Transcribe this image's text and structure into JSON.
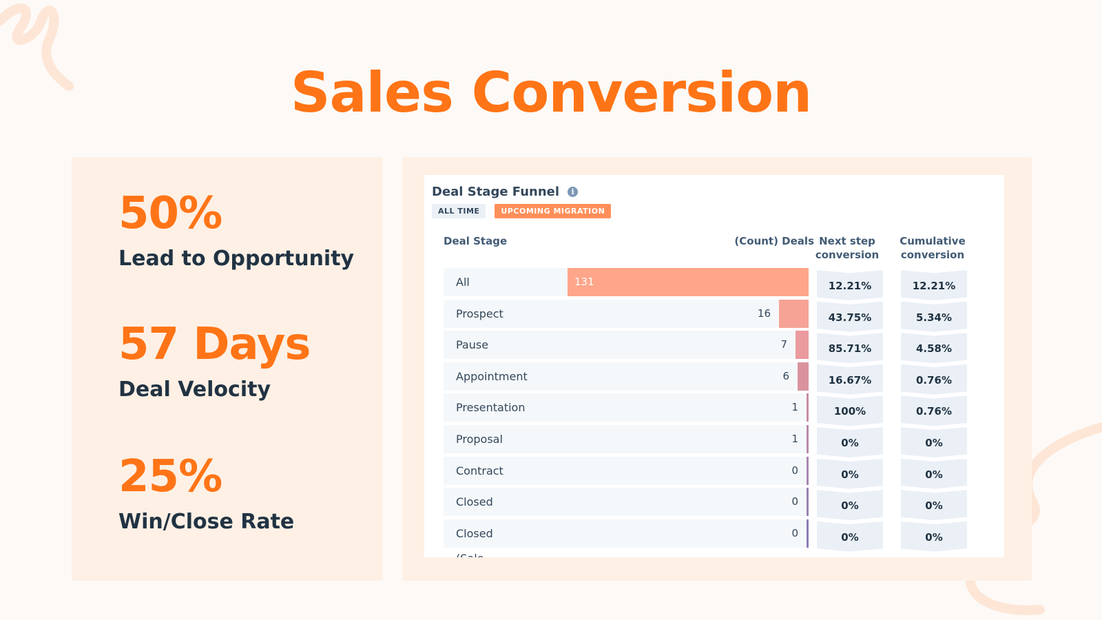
{
  "slide": {
    "title": "Sales Conversion"
  },
  "stats": [
    {
      "value": "50%",
      "label": "Lead to Opportunity"
    },
    {
      "value": "57 Days",
      "label": "Deal Velocity"
    },
    {
      "value": "25%",
      "label": "Win/Close Rate"
    }
  ],
  "report": {
    "title": "Deal Stage Funnel",
    "info_icon": "info-icon",
    "tags": {
      "all_time": "ALL TIME",
      "migration": "UPCOMING MIGRATION"
    },
    "columns": {
      "stage": "Deal Stage",
      "count": "(Count) Deals",
      "next": "Next step conversion",
      "cumulative": "Cumulative conversion"
    },
    "rows": [
      {
        "stage": "All created deals",
        "count": 131,
        "count_label": "131",
        "next": "12.21%",
        "cumulative": "12.21%",
        "color": "#ffa58a"
      },
      {
        "stage": "Prospect (Sales P...",
        "count": 16,
        "count_label": "16",
        "next": "43.75%",
        "cumulative": "5.34%",
        "color": "#f6a396"
      },
      {
        "stage": "Pause (Sales Pipe...",
        "count": 7,
        "count_label": "7",
        "next": "85.71%",
        "cumulative": "4.58%",
        "color": "#eb9a9e"
      },
      {
        "stage": "Appointment sch...",
        "count": 6,
        "count_label": "6",
        "next": "16.67%",
        "cumulative": "0.76%",
        "color": "#d9939e"
      },
      {
        "stage": "Presentation sche...",
        "count": 1,
        "count_label": "1",
        "next": "100%",
        "cumulative": "0.76%",
        "color": "#c98ca3"
      },
      {
        "stage": "Proposal sent (Sa...",
        "count": 1,
        "count_label": "1",
        "next": "0%",
        "cumulative": "0%",
        "color": "#b98aaa"
      },
      {
        "stage": "Contract sent (Sa...",
        "count": 0,
        "count_label": "0",
        "next": "0%",
        "cumulative": "0%",
        "color": "#a886b0"
      },
      {
        "stage": "Closed won (Sale...",
        "count": 0,
        "count_label": "0",
        "next": "0%",
        "cumulative": "0%",
        "color": "#9a80b3"
      },
      {
        "stage": "Closed lost (Sales...",
        "count": 0,
        "count_label": "0",
        "next": "0%",
        "cumulative": "0%",
        "color": "#8c7bb6"
      }
    ]
  }
}
